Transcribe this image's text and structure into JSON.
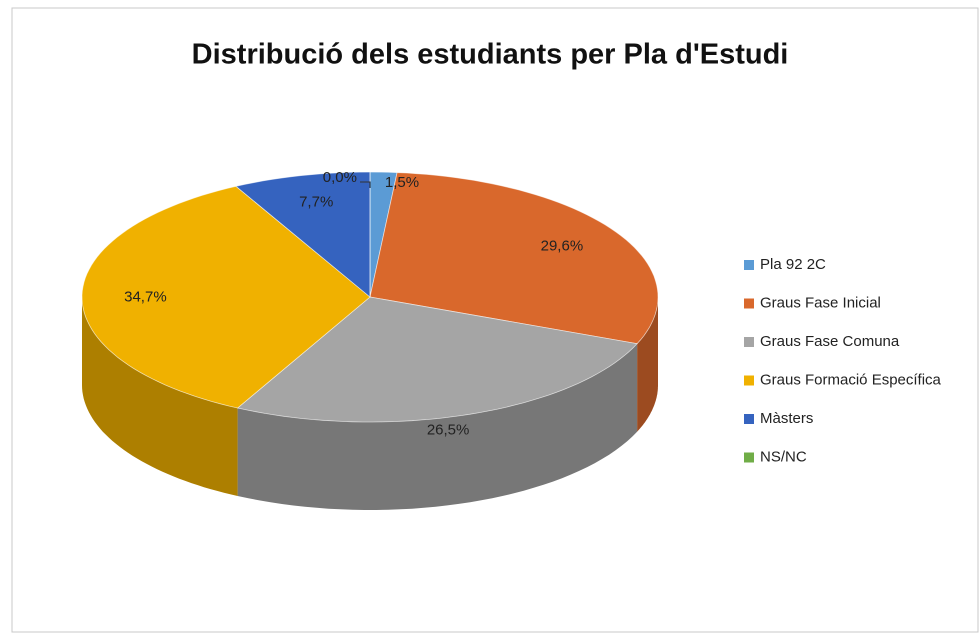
{
  "chart_data": {
    "type": "pie",
    "title": "Distribució dels estudiants per Pla d'Estudi",
    "categories": [
      "Pla 92 2C",
      "Graus Fase Inicial",
      "Graus Fase Comuna",
      "Graus Formació Específica",
      "Màsters",
      "NS/NC"
    ],
    "values": [
      1.5,
      29.6,
      26.5,
      34.7,
      7.7,
      0.0
    ],
    "value_labels": [
      "1,5%",
      "29,6%",
      "26,5%",
      "34,7%",
      "7,7%",
      "0,0%"
    ],
    "colors": [
      "#5b9bd5",
      "#d9682c",
      "#a5a5a5",
      "#f0b100",
      "#3563bf",
      "#70ad47"
    ],
    "legend": "right"
  }
}
